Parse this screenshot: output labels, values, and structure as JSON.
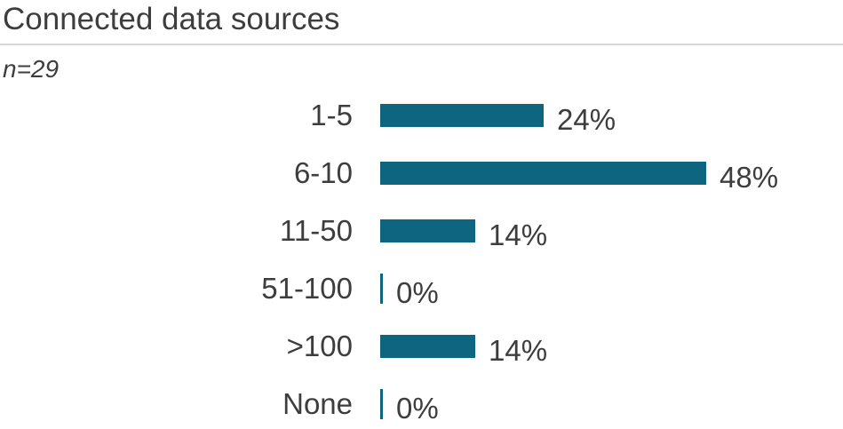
{
  "header": {
    "title": "Connected data sources",
    "subtitle": "n=29"
  },
  "chart_data": {
    "type": "bar",
    "orientation": "horizontal",
    "title": "Connected data sources",
    "sample_size_label": "n=29",
    "categories": [
      "1-5",
      "6-10",
      "11-50",
      "51-100",
      ">100",
      "None"
    ],
    "values": [
      24,
      48,
      14,
      0,
      14,
      0
    ],
    "value_labels": [
      "24%",
      "48%",
      "14%",
      "0%",
      "14%",
      "0%"
    ],
    "unit": "%",
    "xlim": [
      0,
      50
    ],
    "grid": "off",
    "legend": "none"
  },
  "colors": {
    "bar": "#0d657f",
    "text": "#3d3d3d",
    "divider": "#d8d8d8",
    "background": "#ffffff"
  }
}
